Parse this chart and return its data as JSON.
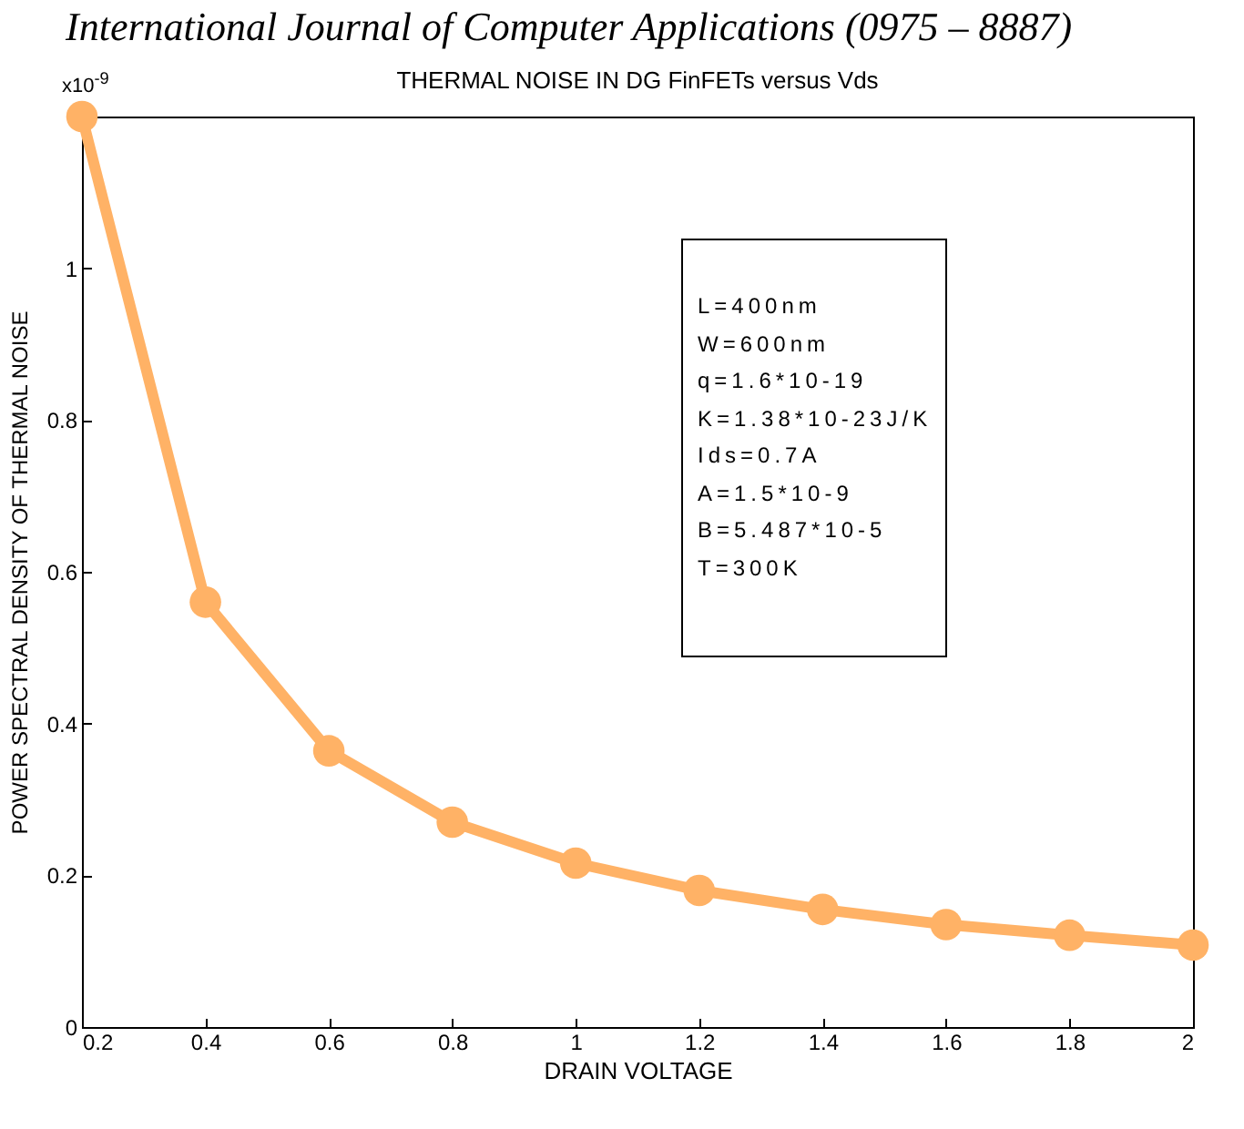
{
  "chart_data": {
    "type": "line",
    "title": "THERMAL NOISE IN DG FinFETs versus Vds",
    "xlabel": "DRAIN   VOLTAGE",
    "ylabel": "POWER SPECTRAL DENSITY OF THERMAL NOISE",
    "annotations": [
      "International Journal of Computer Applications (0975 – 8887)",
      "x10$^{-9}$",
      "L=400nm",
      "W=600nm",
      "q=1.6*10-19",
      "K=1.38*10-23J/K",
      "Ids=0.7A",
      "A=1.5*10-9",
      "B=5.487*10-5",
      "T=300K"
    ],
    "x": [
      0.2,
      0.4,
      0.6,
      0.8,
      1,
      1.2,
      1.4,
      1.6,
      1.8,
      2
    ],
    "series": [
      {
        "color": "#ffb266",
        "values": [
          1.2,
          0.56,
          0.364,
          0.27,
          0.216,
          0.18,
          0.155,
          0.135,
          0.121,
          0.108
        ]
      }
    ],
    "xlim": [
      0.2,
      2
    ],
    "xticks": [
      0.2,
      0.4,
      0.6,
      0.8,
      1,
      1.2,
      1.4,
      1.6,
      1.8,
      2
    ],
    "ylim": [
      0,
      1.2
    ],
    "yticks": [
      0,
      0.2,
      0.4,
      0.6,
      0.8,
      1
    ],
    "grid": false,
    "marker": "circle",
    "line_style": "solid"
  }
}
